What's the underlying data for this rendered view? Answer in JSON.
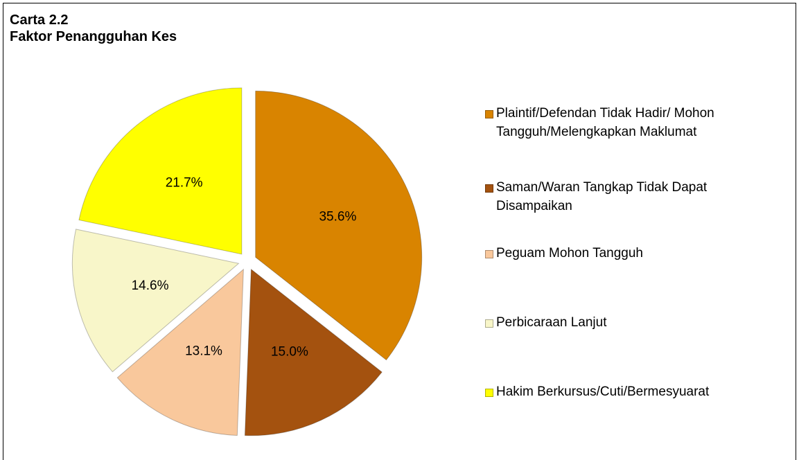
{
  "chart_data": {
    "type": "pie",
    "title": "Carta 2.2",
    "subtitle": "Faktor Penangguhan Kes",
    "categories": [
      "Plaintif/Defendan Tidak Hadir/ Mohon Tangguh/Melengkapkan Maklumat",
      "Saman/Waran Tangkap Tidak Dapat Disampaikan",
      "Peguam Mohon Tangguh",
      "Perbicaraan Lanjut",
      "Hakim Berkursus/Cuti/Bermesyuarat"
    ],
    "values": [
      35.6,
      15.0,
      13.1,
      14.6,
      21.7
    ],
    "value_labels": [
      "35.6%",
      "15.0%",
      "13.1%",
      "14.6%",
      "21.7%"
    ],
    "colors": [
      "#d98400",
      "#a4520f",
      "#f9c89c",
      "#f8f6c9",
      "#ffff00"
    ],
    "legend": "right"
  }
}
